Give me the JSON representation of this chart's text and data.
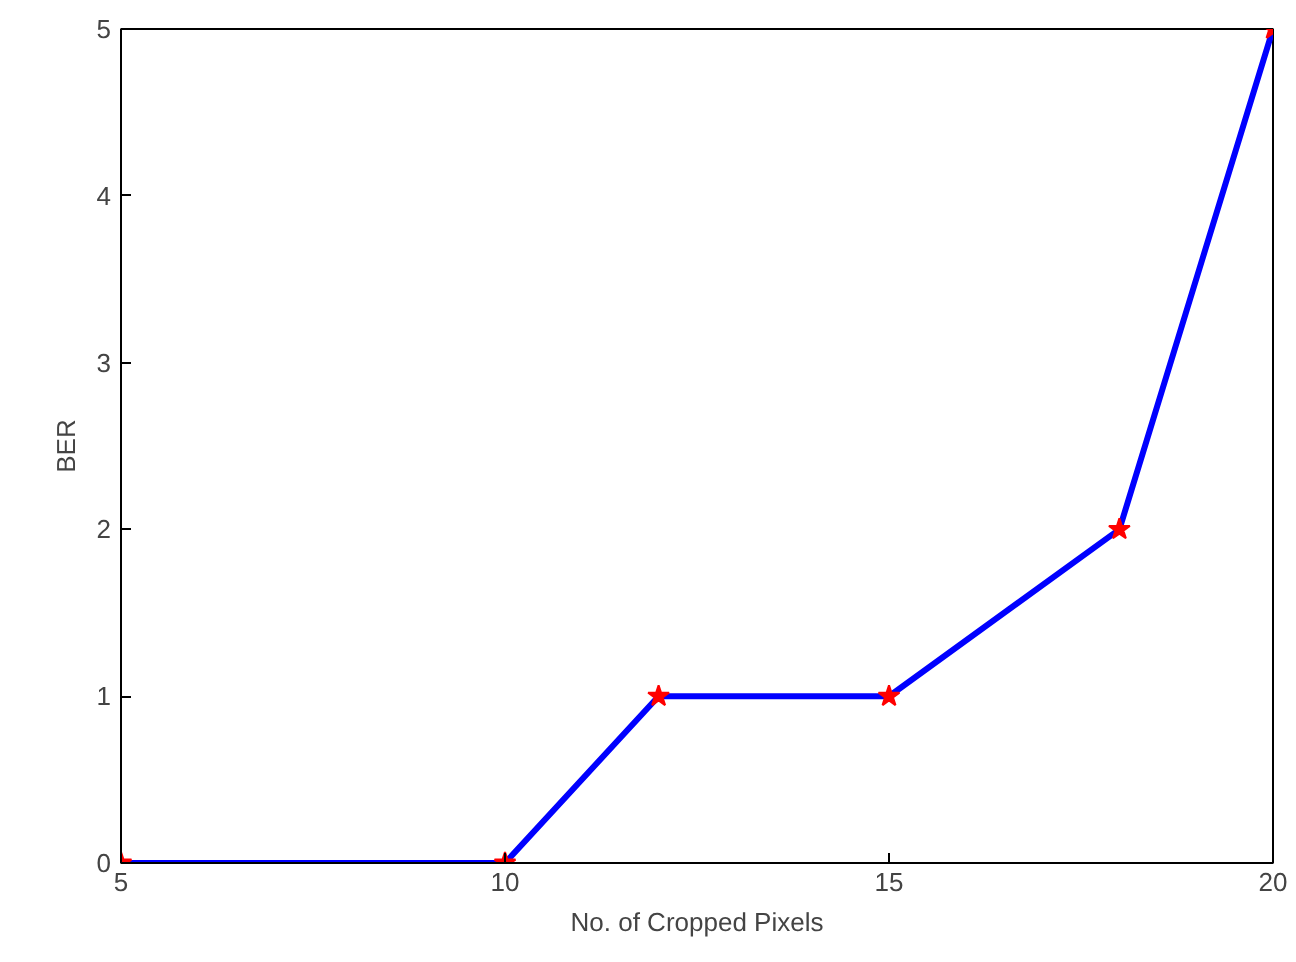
{
  "chart_data": {
    "type": "line",
    "xlabel": "No. of Cropped Pixels",
    "ylabel": "BER",
    "x": [
      5,
      10,
      12,
      15,
      18,
      20
    ],
    "series": [
      {
        "color": "#0000ff",
        "colors": [
          "#ff0000",
          "#ff0000",
          "#ff0000",
          "#ff0000",
          "#ff0000",
          "#ff0000"
        ],
        "values": [
          0,
          0,
          1,
          1,
          2,
          5
        ]
      }
    ],
    "xlim": [
      5,
      20
    ],
    "xticks": [
      5,
      10,
      15,
      20
    ],
    "ylim": [
      0,
      5
    ],
    "yticks": [
      0,
      1,
      2,
      3,
      4,
      5
    ],
    "grid": false,
    "marker": "star",
    "line_style": "solid"
  }
}
